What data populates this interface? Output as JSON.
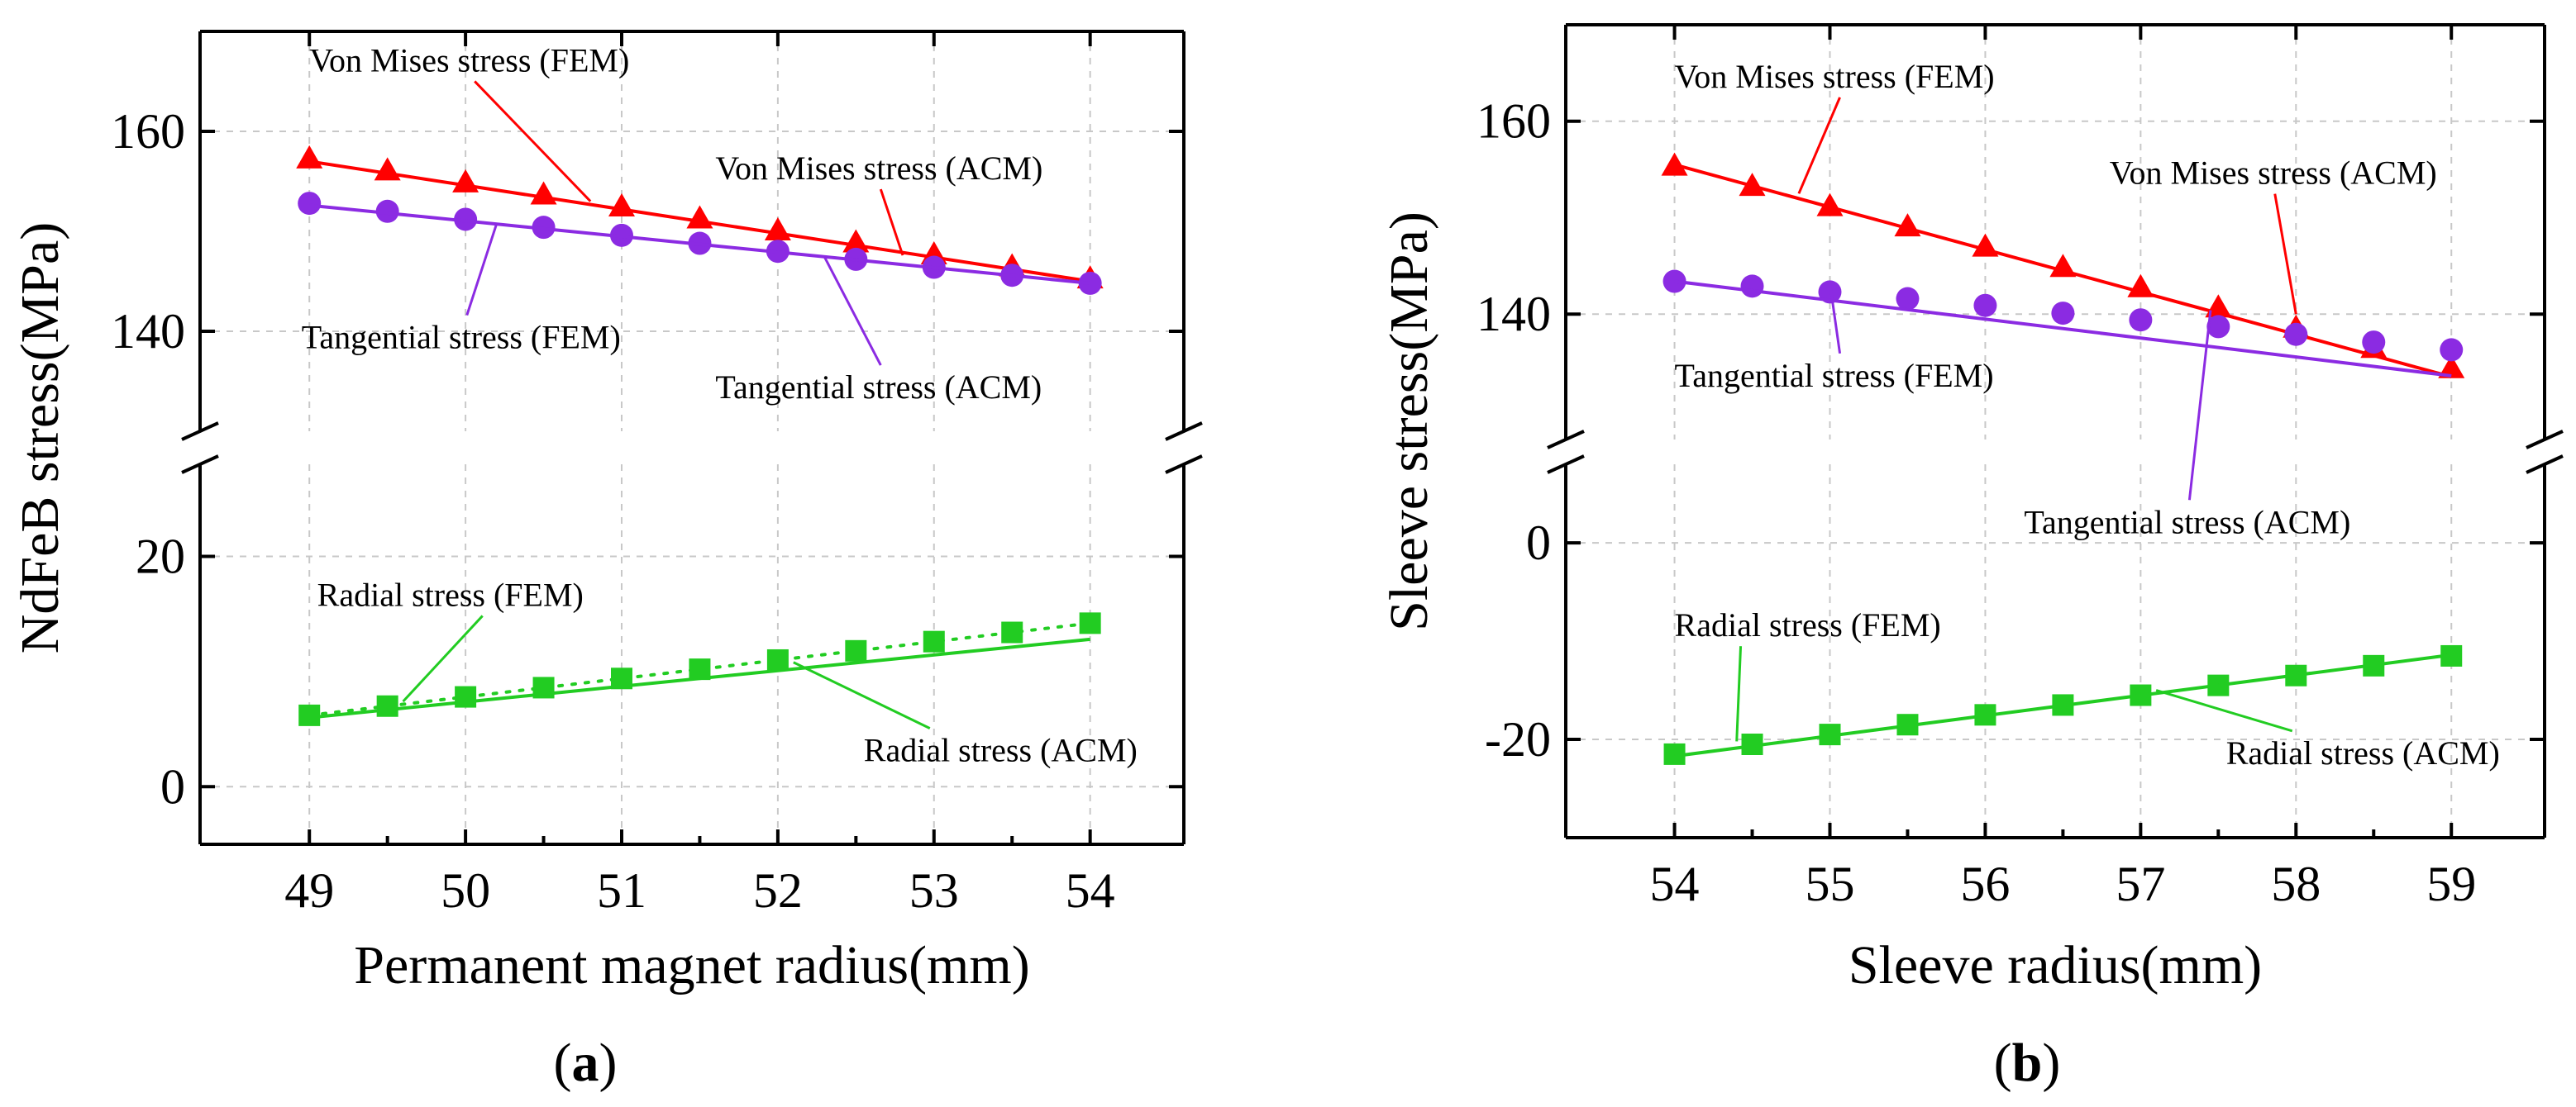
{
  "colors": {
    "von_mises": "#ff0000",
    "tangential": "#8b2be2",
    "radial": "#22cc22",
    "grid": "#c8c8c8",
    "axis": "#000000"
  },
  "chart_data": [
    {
      "type": "line",
      "panel": "a",
      "xlabel": "Permanent magnet radius(mm)",
      "ylabel": "NdFeB stress(MPa)",
      "xlim": [
        48.3,
        54.6
      ],
      "x_ticks": [
        49,
        50,
        51,
        52,
        53,
        54
      ],
      "x_tick_labels": [
        "49",
        "50",
        "51",
        "52",
        "53",
        "54"
      ],
      "broken_y_axis": true,
      "y_upper": {
        "range": [
          130,
          170
        ],
        "ticks": [
          140,
          160
        ],
        "tick_labels": [
          "140",
          "160"
        ]
      },
      "y_lower": {
        "range": [
          -5,
          28
        ],
        "ticks": [
          0,
          20
        ],
        "tick_labels": [
          "0",
          "20"
        ]
      },
      "x": [
        49,
        49.5,
        50,
        50.5,
        51,
        51.5,
        52,
        52.5,
        53,
        53.5,
        54
      ],
      "series": [
        {
          "name": "Von Mises stress (FEM)",
          "segment": "upper",
          "marker": "triangle",
          "color_key": "von_mises",
          "values": [
            157.2,
            156.0,
            154.8,
            153.6,
            152.4,
            151.2,
            150.0,
            148.8,
            147.6,
            146.4,
            145.2
          ]
        },
        {
          "name": "Von Mises stress (ACM)",
          "segment": "upper",
          "marker": "none",
          "color_key": "von_mises",
          "line_from": [
            49,
            157.0
          ],
          "line_to": [
            54,
            145.0
          ]
        },
        {
          "name": "Tangential stress (FEM)",
          "segment": "upper",
          "marker": "circle",
          "color_key": "tangential",
          "values": [
            152.8,
            152.0,
            151.2,
            150.4,
            149.6,
            148.8,
            148.0,
            147.2,
            146.4,
            145.6,
            144.8
          ]
        },
        {
          "name": "Tangential stress (ACM)",
          "segment": "upper",
          "marker": "none",
          "color_key": "tangential",
          "line_from": [
            49,
            152.6
          ],
          "line_to": [
            54,
            144.8
          ]
        },
        {
          "name": "Radial stress (FEM)",
          "segment": "lower",
          "marker": "square",
          "dotted": true,
          "color_key": "radial",
          "values": [
            6.2,
            7.0,
            7.8,
            8.6,
            9.4,
            10.2,
            11.0,
            11.8,
            12.6,
            13.4,
            14.2
          ]
        },
        {
          "name": "Radial stress (ACM)",
          "segment": "lower",
          "marker": "none",
          "color_key": "radial",
          "line_from": [
            49,
            6.0
          ],
          "line_to": [
            54,
            12.8
          ]
        }
      ],
      "annotations": [
        {
          "text": "Von Mises stress (FEM)",
          "series": 0,
          "label_x": 49.0,
          "label_y": 166,
          "target": [
            50.8,
            153.0
          ]
        },
        {
          "text": "Von Mises stress (ACM)",
          "series": 1,
          "label_x": 51.6,
          "label_y": 155.2,
          "target": [
            52.8,
            147.6
          ]
        },
        {
          "text": "Tangential stress (FEM)",
          "series": 2,
          "label_x": 48.95,
          "label_y": 138.3,
          "target": [
            50.2,
            150.8
          ]
        },
        {
          "text": "Tangential stress (ACM)",
          "series": 3,
          "label_x": 51.6,
          "label_y": 133.3,
          "target": [
            52.3,
            147.4
          ]
        },
        {
          "text": "Radial stress (FEM)",
          "series": 4,
          "label_x": 49.05,
          "label_y": 15.7,
          "target": [
            49.6,
            7.4
          ]
        },
        {
          "text": "Radial stress (ACM)",
          "series": 5,
          "label_x": 52.55,
          "label_y": 2.2,
          "target": [
            52.1,
            10.8
          ]
        }
      ],
      "caption_letter": "a"
    },
    {
      "type": "line",
      "panel": "b",
      "xlabel": "Sleeve radius(mm)",
      "ylabel": "Sleeve stress(MPa)",
      "xlim": [
        53.3,
        59.6
      ],
      "x_ticks": [
        54,
        55,
        56,
        57,
        58,
        59
      ],
      "x_tick_labels": [
        "54",
        "55",
        "56",
        "57",
        "58",
        "59"
      ],
      "broken_y_axis": true,
      "y_upper": {
        "range": [
          127,
          170
        ],
        "ticks": [
          140,
          160
        ],
        "tick_labels": [
          "140",
          "160"
        ]
      },
      "y_lower": {
        "range": [
          -30,
          8
        ],
        "ticks": [
          -20,
          0
        ],
        "tick_labels": [
          "-20",
          "0"
        ]
      },
      "x": [
        54,
        54.5,
        55,
        55.5,
        56,
        56.5,
        57,
        57.5,
        58,
        58.5,
        59
      ],
      "series": [
        {
          "name": "Von Mises stress (FEM)",
          "segment": "upper",
          "marker": "triangle",
          "color_key": "von_mises",
          "values": [
            155.3,
            153.2,
            151.1,
            149.0,
            146.9,
            144.8,
            142.7,
            140.6,
            138.5,
            136.4,
            134.3
          ]
        },
        {
          "name": "Von Mises stress (ACM)",
          "segment": "upper",
          "marker": "none",
          "color_key": "von_mises",
          "line_from": [
            54,
            155.5
          ],
          "line_to": [
            59,
            133.5
          ]
        },
        {
          "name": "Tangential stress (FEM)",
          "segment": "upper",
          "marker": "circle",
          "color_key": "tangential",
          "values": [
            143.4,
            142.9,
            142.3,
            141.6,
            140.9,
            140.1,
            139.4,
            138.7,
            137.9,
            137.1,
            136.3
          ]
        },
        {
          "name": "Tangential stress (ACM)",
          "segment": "upper",
          "marker": "none",
          "color_key": "tangential",
          "line_from": [
            54,
            143.4
          ],
          "line_to": [
            59,
            133.6
          ]
        },
        {
          "name": "Radial stress (FEM)",
          "segment": "lower",
          "marker": "square",
          "dotted": false,
          "color_key": "radial",
          "values": [
            -21.5,
            -20.5,
            -19.5,
            -18.5,
            -17.5,
            -16.5,
            -15.5,
            -14.5,
            -13.5,
            -12.5,
            -11.5
          ]
        },
        {
          "name": "Radial stress (ACM)",
          "segment": "lower",
          "marker": "none",
          "color_key": "radial",
          "line_from": [
            54,
            -21.7
          ],
          "line_to": [
            59,
            -11.4
          ]
        }
      ],
      "annotations": [
        {
          "text": "Von Mises stress (FEM)",
          "series": 0,
          "label_x": 54.0,
          "label_y": 163.5,
          "target": [
            54.8,
            152.5
          ]
        },
        {
          "text": "Von Mises stress (ACM)",
          "series": 1,
          "label_x": 56.8,
          "label_y": 153.5,
          "target": [
            58.0,
            140.0
          ]
        },
        {
          "text": "Tangential stress (FEM)",
          "series": 2,
          "label_x": 54.0,
          "label_y": 132.5,
          "target": [
            55.0,
            143.2
          ]
        },
        {
          "text": "Tangential stress (ACM)",
          "series": 3,
          "label_x": 56.25,
          "label_y": 1.0,
          "target": [
            57.45,
            140.4
          ]
        },
        {
          "text": "Radial stress (FEM)",
          "series": 4,
          "label_x": 54.0,
          "label_y": -9.5,
          "target": [
            54.4,
            -20.2
          ]
        },
        {
          "text": "Radial stress (ACM)",
          "series": 5,
          "label_x": 57.55,
          "label_y": -22.5,
          "target": [
            57.1,
            -15.0
          ]
        }
      ],
      "caption_letter": "b"
    }
  ]
}
